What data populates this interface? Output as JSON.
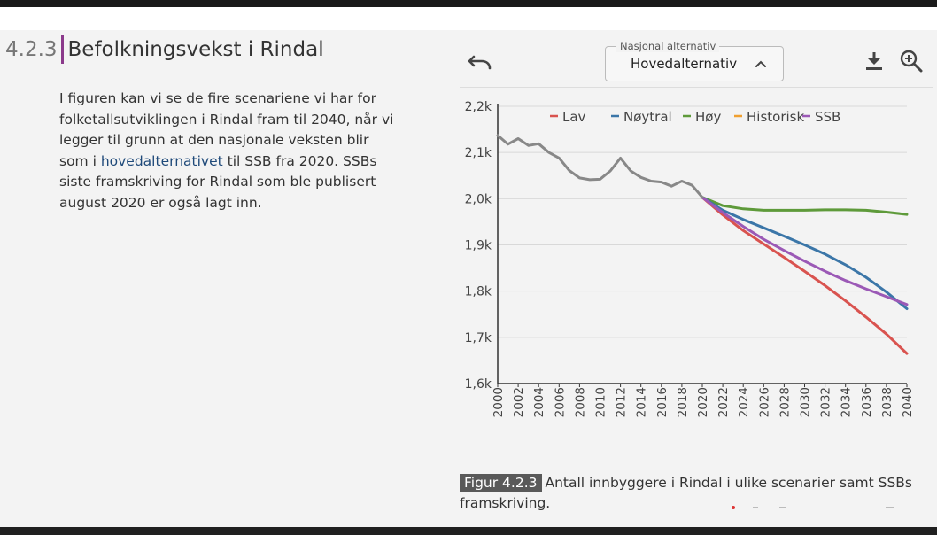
{
  "section": {
    "number": "4.2.3",
    "title": "Befolkningsvekst i Rindal"
  },
  "body": {
    "text_before": "I figuren kan vi se de fire scenariene vi har for folketallsutviklingen i Rindal fram til 2040, når vi legger til grunn at den nasjonale veksten blir som i ",
    "link_text": "hovedalternativet",
    "text_after": " til SSB fra 2020. SSBs siste framskriving for Rindal som ble publisert august 2020 er også lagt inn."
  },
  "toolbar": {
    "select_label": "Nasjonal alternativ",
    "select_value": "Hovedalternativ",
    "undo_icon": "undo-icon",
    "download_icon": "download-icon",
    "zoom_icon": "zoom-in-icon"
  },
  "caption": {
    "label": "Figur 4.2.3",
    "text": "Antall innbyggere i Rindal i ulike scenarier samt SSBs framskriving."
  },
  "chart_data": {
    "type": "line",
    "title": "",
    "xlabel": "",
    "ylabel": "",
    "ylim": [
      1600,
      2200
    ],
    "xlim": [
      2000,
      2040
    ],
    "y_ticks": [
      1600,
      1700,
      1800,
      1900,
      2000,
      2100,
      2200
    ],
    "y_tick_labels": [
      "1,6k",
      "1,7k",
      "1,8k",
      "1,9k",
      "2,0k",
      "2,1k",
      "2,2k"
    ],
    "x_tick_labels": [
      "2000",
      "2002",
      "2004",
      "2006",
      "2008",
      "2010",
      "2012",
      "2014",
      "2016",
      "2018",
      "2020",
      "2022",
      "2024",
      "2026",
      "2028",
      "2030",
      "2032",
      "2034",
      "2036",
      "2038",
      "2040"
    ],
    "legend_position": "top-center",
    "series": [
      {
        "name": "Lav",
        "color": "#d9534f",
        "x": [
          2020,
          2022,
          2024,
          2026,
          2028,
          2030,
          2032,
          2034,
          2036,
          2038,
          2040
        ],
        "values": [
          2003,
          1965,
          1931,
          1902,
          1873,
          1843,
          1812,
          1779,
          1744,
          1707,
          1665
        ]
      },
      {
        "name": "Nøytral",
        "color": "#3b76a8",
        "x": [
          2020,
          2022,
          2024,
          2026,
          2028,
          2030,
          2032,
          2034,
          2036,
          2038,
          2040
        ],
        "values": [
          2003,
          1975,
          1955,
          1937,
          1919,
          1900,
          1880,
          1857,
          1830,
          1798,
          1762
        ]
      },
      {
        "name": "Høy",
        "color": "#5e9a3a",
        "x": [
          2020,
          2022,
          2024,
          2026,
          2028,
          2030,
          2032,
          2034,
          2036,
          2038,
          2040
        ],
        "values": [
          2003,
          1985,
          1978,
          1975,
          1975,
          1975,
          1976,
          1976,
          1975,
          1971,
          1966
        ]
      },
      {
        "name": "Historisk",
        "color": "#f0a030",
        "x": [
          2000,
          2001,
          2002,
          2003,
          2004,
          2005,
          2006,
          2007,
          2008,
          2009,
          2010,
          2011,
          2012,
          2013,
          2014,
          2015,
          2016,
          2017,
          2018,
          2019,
          2020
        ],
        "values": [
          2137,
          2118,
          2130,
          2115,
          2119,
          2100,
          2088,
          2061,
          2045,
          2041,
          2042,
          2060,
          2088,
          2060,
          2046,
          2038,
          2036,
          2027,
          2038,
          2029,
          2003
        ]
      },
      {
        "name": "SSB",
        "color": "#9b59b6",
        "x": [
          2020,
          2022,
          2024,
          2026,
          2028,
          2030,
          2032,
          2034,
          2036,
          2038,
          2040
        ],
        "values": [
          2003,
          1970,
          1940,
          1912,
          1888,
          1865,
          1843,
          1823,
          1805,
          1788,
          1771
        ]
      }
    ],
    "historical_line_color": "#888888"
  }
}
